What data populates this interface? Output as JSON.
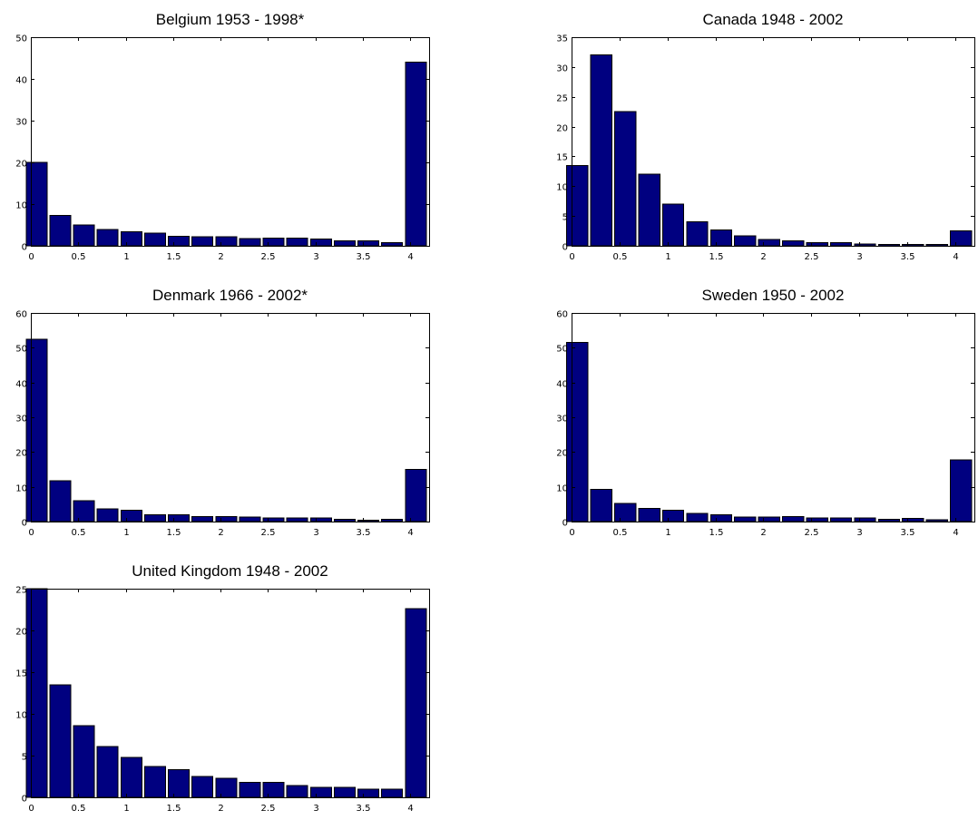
{
  "colors": {
    "bar_fill": "#000080",
    "bar_edge": "#000000",
    "axes": "#000000",
    "background": "#ffffff"
  },
  "chart_data": [
    {
      "type": "bar",
      "title": "Belgium 1953 - 1998*",
      "x": [
        0.06,
        0.31,
        0.56,
        0.81,
        1.06,
        1.31,
        1.56,
        1.81,
        2.06,
        2.31,
        2.56,
        2.81,
        3.06,
        3.31,
        3.56,
        3.81,
        4.06
      ],
      "values": [
        20,
        7.3,
        5,
        3.9,
        3.4,
        3,
        2.3,
        2.2,
        2.2,
        1.7,
        1.9,
        1.9,
        1.6,
        1.2,
        1.2,
        0.8,
        44
      ],
      "xlim": [
        0,
        4.2
      ],
      "ylim": [
        0,
        50
      ],
      "xticks": [
        0,
        0.5,
        1,
        1.5,
        2,
        2.5,
        3,
        3.5,
        4
      ],
      "xtick_labels": [
        "0",
        "0.5",
        "1",
        "1.5",
        "2",
        "2.5",
        "3",
        "3.5",
        "4"
      ],
      "yticks": [
        0,
        10,
        20,
        30,
        40,
        50
      ],
      "ytick_labels": [
        "0",
        "10",
        "20",
        "30",
        "40",
        "50"
      ],
      "xlabel": "",
      "ylabel": "",
      "grid": false
    },
    {
      "type": "bar",
      "title": "Canada 1948 - 2002",
      "x": [
        0.06,
        0.31,
        0.56,
        0.81,
        1.06,
        1.31,
        1.56,
        1.81,
        2.06,
        2.31,
        2.56,
        2.81,
        3.06,
        3.31,
        3.56,
        3.81,
        4.06
      ],
      "values": [
        13.5,
        32,
        22.5,
        12,
        7,
        4,
        2.7,
        1.7,
        1.1,
        0.8,
        0.5,
        0.5,
        0.3,
        0.2,
        0.2,
        0.2,
        2.5
      ],
      "xlim": [
        0,
        4.2
      ],
      "ylim": [
        0,
        35
      ],
      "xticks": [
        0,
        0.5,
        1,
        1.5,
        2,
        2.5,
        3,
        3.5,
        4
      ],
      "xtick_labels": [
        "0",
        "0.5",
        "1",
        "1.5",
        "2",
        "2.5",
        "3",
        "3.5",
        "4"
      ],
      "yticks": [
        0,
        5,
        10,
        15,
        20,
        25,
        30,
        35
      ],
      "ytick_labels": [
        "0",
        "5",
        "10",
        "15",
        "20",
        "25",
        "30",
        "35"
      ],
      "xlabel": "",
      "ylabel": "",
      "grid": false
    },
    {
      "type": "bar",
      "title": "Denmark 1966 - 2002*",
      "x": [
        0.06,
        0.31,
        0.56,
        0.81,
        1.06,
        1.31,
        1.56,
        1.81,
        2.06,
        2.31,
        2.56,
        2.81,
        3.06,
        3.31,
        3.56,
        3.81,
        4.06
      ],
      "values": [
        52.5,
        11.7,
        6,
        3.7,
        3.2,
        1.9,
        1.9,
        1.4,
        1.4,
        1.3,
        1,
        1,
        1,
        0.6,
        0.4,
        0.6,
        15
      ],
      "xlim": [
        0,
        4.2
      ],
      "ylim": [
        0,
        60
      ],
      "xticks": [
        0,
        0.5,
        1,
        1.5,
        2,
        2.5,
        3,
        3.5,
        4
      ],
      "xtick_labels": [
        "0",
        "0.5",
        "1",
        "1.5",
        "2",
        "2.5",
        "3",
        "3.5",
        "4"
      ],
      "yticks": [
        0,
        10,
        20,
        30,
        40,
        50,
        60
      ],
      "ytick_labels": [
        "0",
        "10",
        "20",
        "30",
        "40",
        "50",
        "60"
      ],
      "xlabel": "",
      "ylabel": "",
      "grid": false
    },
    {
      "type": "bar",
      "title": "Sweden 1950 - 2002",
      "x": [
        0.06,
        0.31,
        0.56,
        0.81,
        1.06,
        1.31,
        1.56,
        1.81,
        2.06,
        2.31,
        2.56,
        2.81,
        3.06,
        3.31,
        3.56,
        3.81,
        4.06
      ],
      "values": [
        51.5,
        9.3,
        5.2,
        3.8,
        3.2,
        2.3,
        1.9,
        1.3,
        1.3,
        1.4,
        1.1,
        1,
        1,
        0.6,
        0.9,
        0.5,
        17.8
      ],
      "xlim": [
        0,
        4.2
      ],
      "ylim": [
        0,
        60
      ],
      "xticks": [
        0,
        0.5,
        1,
        1.5,
        2,
        2.5,
        3,
        3.5,
        4
      ],
      "xtick_labels": [
        "0",
        "0.5",
        "1",
        "1.5",
        "2",
        "2.5",
        "3",
        "3.5",
        "4"
      ],
      "yticks": [
        0,
        10,
        20,
        30,
        40,
        50,
        60
      ],
      "ytick_labels": [
        "0",
        "10",
        "20",
        "30",
        "40",
        "50",
        "60"
      ],
      "xlabel": "",
      "ylabel": "",
      "grid": false
    },
    {
      "type": "bar",
      "title": "United Kingdom 1948 - 2002",
      "x": [
        0.06,
        0.31,
        0.56,
        0.81,
        1.06,
        1.31,
        1.56,
        1.81,
        2.06,
        2.31,
        2.56,
        2.81,
        3.06,
        3.31,
        3.56,
        3.81,
        4.06
      ],
      "values": [
        25,
        13.5,
        8.6,
        6.1,
        4.8,
        3.7,
        3.3,
        2.5,
        2.3,
        1.8,
        1.8,
        1.4,
        1.2,
        1.2,
        1,
        1,
        22.6
      ],
      "xlim": [
        0,
        4.2
      ],
      "ylim": [
        0,
        25
      ],
      "xticks": [
        0,
        0.5,
        1,
        1.5,
        2,
        2.5,
        3,
        3.5,
        4
      ],
      "xtick_labels": [
        "0",
        "0.5",
        "1",
        "1.5",
        "2",
        "2.5",
        "3",
        "3.5",
        "4"
      ],
      "yticks": [
        0,
        5,
        10,
        15,
        20,
        25
      ],
      "ytick_labels": [
        "0",
        "5",
        "10",
        "15",
        "20",
        "25"
      ],
      "xlabel": "",
      "ylabel": "",
      "grid": false
    }
  ]
}
